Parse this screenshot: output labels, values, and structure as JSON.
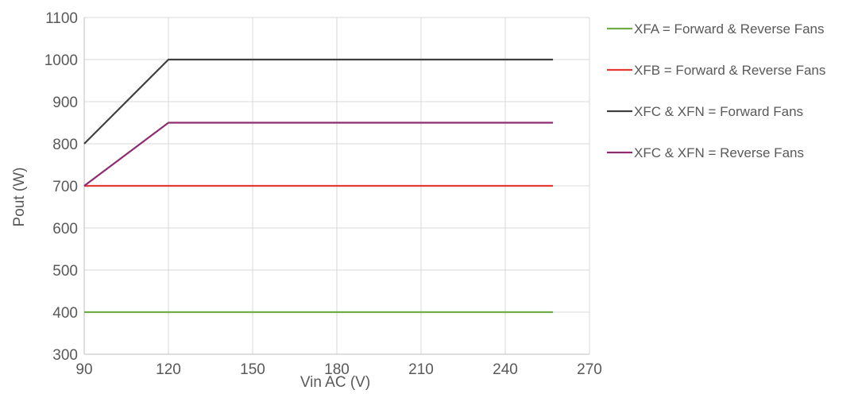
{
  "chart_data": {
    "type": "line",
    "title": "",
    "xlabel": "Vin AC (V)",
    "ylabel": "Pout (W)",
    "xlim": [
      90,
      270
    ],
    "ylim": [
      300,
      1100
    ],
    "xticks": [
      90,
      120,
      150,
      180,
      210,
      240,
      270
    ],
    "yticks": [
      300,
      400,
      500,
      600,
      700,
      800,
      900,
      1000,
      1100
    ],
    "grid": true,
    "legend_position": "right",
    "series": [
      {
        "name": "XFA = Forward & Reverse Fans",
        "color": "#70AD47",
        "x": [
          90,
          257
        ],
        "y": [
          400,
          400
        ]
      },
      {
        "name": "XFB = Forward & Reverse Fans",
        "color": "#E53935",
        "x": [
          90,
          257
        ],
        "y": [
          700,
          700
        ]
      },
      {
        "name": "XFC & XFN = Forward Fans",
        "color": "#404040",
        "x": [
          90,
          120,
          257
        ],
        "y": [
          800,
          1000,
          1000
        ]
      },
      {
        "name": "XFC & XFN = Reverse Fans",
        "color": "#8E2C6E",
        "x": [
          90,
          120,
          257
        ],
        "y": [
          700,
          850,
          850
        ]
      }
    ]
  }
}
